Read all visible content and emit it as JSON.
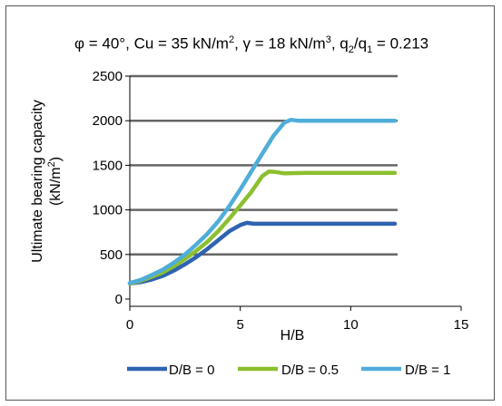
{
  "chart_data": {
    "type": "line",
    "title_parts": {
      "phi": "φ = 40°",
      "cu": "Cu = 35 kN/m",
      "cu_sup": "2",
      "gamma": "γ = 18 kN/m",
      "gamma_sup": "3",
      "q": "q",
      "q2_sub": "2",
      "slash": "/q",
      "q1_sub": "1",
      "ratio": " = 0.213"
    },
    "xlabel": "H/B",
    "ylabel_line1": "Ultimate bearing capacity",
    "ylabel_line2": "(kN/m",
    "ylabel_sup": "2",
    "ylabel_end": ")",
    "xlim": [
      0,
      15
    ],
    "ylim": [
      0,
      2500
    ],
    "xticks": [
      "0",
      "5",
      "10",
      "15"
    ],
    "yticks": [
      "0",
      "500",
      "1000",
      "1500",
      "2000",
      "2500"
    ],
    "grid": "horizontal",
    "legend_position": "bottom",
    "series": [
      {
        "name": "D/B = 0",
        "color": "#2e63b0",
        "points": [
          [
            0,
            175
          ],
          [
            0.5,
            190
          ],
          [
            1,
            220
          ],
          [
            1.5,
            260
          ],
          [
            2,
            320
          ],
          [
            2.5,
            390
          ],
          [
            3,
            470
          ],
          [
            3.5,
            560
          ],
          [
            4,
            660
          ],
          [
            4.5,
            760
          ],
          [
            5,
            830
          ],
          [
            5.3,
            855
          ],
          [
            5.6,
            845
          ],
          [
            6,
            845
          ],
          [
            8,
            845
          ],
          [
            10,
            845
          ],
          [
            12,
            845
          ]
        ]
      },
      {
        "name": "D/B = 0.5",
        "color": "#8cbf2f",
        "points": [
          [
            0,
            175
          ],
          [
            0.5,
            205
          ],
          [
            1,
            250
          ],
          [
            1.5,
            300
          ],
          [
            2,
            370
          ],
          [
            2.5,
            450
          ],
          [
            3,
            540
          ],
          [
            3.5,
            640
          ],
          [
            4,
            760
          ],
          [
            4.5,
            900
          ],
          [
            5,
            1050
          ],
          [
            5.5,
            1200
          ],
          [
            6,
            1380
          ],
          [
            6.3,
            1430
          ],
          [
            6.6,
            1425
          ],
          [
            7,
            1410
          ],
          [
            8,
            1415
          ],
          [
            10,
            1415
          ],
          [
            12,
            1415
          ]
        ]
      },
      {
        "name": "D/B = 1",
        "color": "#4fadd9",
        "points": [
          [
            0,
            180
          ],
          [
            0.5,
            215
          ],
          [
            1,
            270
          ],
          [
            1.5,
            330
          ],
          [
            2,
            410
          ],
          [
            2.5,
            500
          ],
          [
            3,
            610
          ],
          [
            3.5,
            730
          ],
          [
            4,
            870
          ],
          [
            4.5,
            1040
          ],
          [
            5,
            1230
          ],
          [
            5.5,
            1430
          ],
          [
            6,
            1630
          ],
          [
            6.5,
            1830
          ],
          [
            7,
            1980
          ],
          [
            7.3,
            2010
          ],
          [
            7.6,
            2000
          ],
          [
            8,
            2000
          ],
          [
            10,
            2000
          ],
          [
            12,
            2000
          ]
        ]
      }
    ]
  }
}
